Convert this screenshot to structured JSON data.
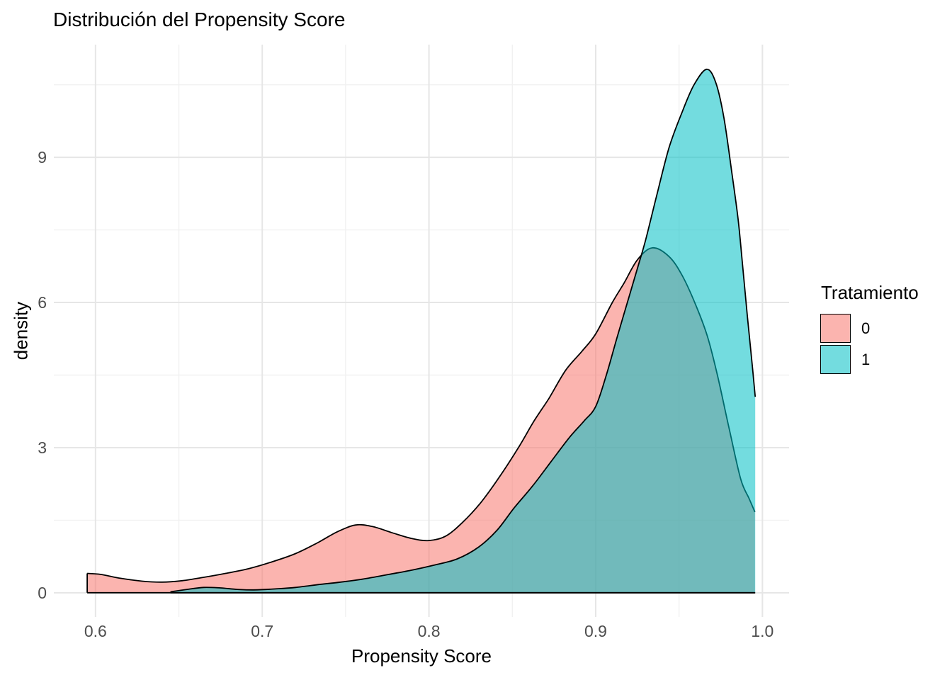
{
  "chart_data": {
    "type": "area",
    "subtype": "density",
    "title": "Distribución del Propensity Score",
    "xlabel": "Propensity Score",
    "ylabel": "density",
    "background": "#FFFFFF",
    "grid": {
      "major_color": "#E6E6E6",
      "minor_color": "#F1F1F1",
      "visible": true
    },
    "stroke_color": "#000000",
    "fill_alpha": 0.55,
    "x_domain": [
      0.575,
      1.016
    ],
    "y_domain": [
      -0.5,
      11.33
    ],
    "x_ticks": [
      {
        "v": 0.6,
        "label": "0.6"
      },
      {
        "v": 0.7,
        "label": "0.7"
      },
      {
        "v": 0.8,
        "label": "0.8"
      },
      {
        "v": 0.9,
        "label": "0.9"
      },
      {
        "v": 1.0,
        "label": "1.0"
      }
    ],
    "y_ticks": [
      {
        "v": 0,
        "label": "0"
      },
      {
        "v": 3,
        "label": "3"
      },
      {
        "v": 6,
        "label": "6"
      },
      {
        "v": 9,
        "label": "9"
      }
    ],
    "x_minor": [
      0.65,
      0.75,
      0.85,
      0.95
    ],
    "y_minor": [
      1.5,
      4.5,
      7.5,
      10.5
    ],
    "legend": {
      "title": "Tratamiento",
      "position": "right",
      "entries": [
        {
          "label": "0",
          "color": "#F8766D"
        },
        {
          "label": "1",
          "color": "#00BFC4"
        }
      ]
    },
    "series": [
      {
        "name": "0",
        "color": "#F8766D",
        "points": [
          [
            0.595,
            0.4
          ],
          [
            0.603,
            0.38
          ],
          [
            0.615,
            0.3
          ],
          [
            0.628,
            0.24
          ],
          [
            0.64,
            0.22
          ],
          [
            0.652,
            0.25
          ],
          [
            0.665,
            0.32
          ],
          [
            0.678,
            0.4
          ],
          [
            0.692,
            0.5
          ],
          [
            0.706,
            0.64
          ],
          [
            0.72,
            0.81
          ],
          [
            0.733,
            1.03
          ],
          [
            0.745,
            1.26
          ],
          [
            0.756,
            1.4
          ],
          [
            0.766,
            1.37
          ],
          [
            0.778,
            1.24
          ],
          [
            0.79,
            1.12
          ],
          [
            0.8,
            1.08
          ],
          [
            0.81,
            1.17
          ],
          [
            0.82,
            1.45
          ],
          [
            0.831,
            1.86
          ],
          [
            0.842,
            2.38
          ],
          [
            0.854,
            3.02
          ],
          [
            0.863,
            3.55
          ],
          [
            0.872,
            4.02
          ],
          [
            0.882,
            4.6
          ],
          [
            0.892,
            5.0
          ],
          [
            0.9,
            5.35
          ],
          [
            0.91,
            6.0
          ],
          [
            0.917,
            6.4
          ],
          [
            0.925,
            6.88
          ],
          [
            0.934,
            7.13
          ],
          [
            0.944,
            6.95
          ],
          [
            0.952,
            6.55
          ],
          [
            0.96,
            5.95
          ],
          [
            0.967,
            5.3
          ],
          [
            0.973,
            4.5
          ],
          [
            0.98,
            3.4
          ],
          [
            0.987,
            2.35
          ],
          [
            0.992,
            1.95
          ],
          [
            0.9955,
            1.67
          ]
        ]
      },
      {
        "name": "1",
        "color": "#00BFC4",
        "points": [
          [
            0.645,
            0.02
          ],
          [
            0.655,
            0.07
          ],
          [
            0.665,
            0.11
          ],
          [
            0.675,
            0.1
          ],
          [
            0.685,
            0.07
          ],
          [
            0.695,
            0.06
          ],
          [
            0.708,
            0.08
          ],
          [
            0.72,
            0.11
          ],
          [
            0.734,
            0.17
          ],
          [
            0.747,
            0.22
          ],
          [
            0.76,
            0.28
          ],
          [
            0.776,
            0.38
          ],
          [
            0.79,
            0.47
          ],
          [
            0.803,
            0.57
          ],
          [
            0.817,
            0.7
          ],
          [
            0.83,
            0.95
          ],
          [
            0.841,
            1.3
          ],
          [
            0.851,
            1.75
          ],
          [
            0.862,
            2.2
          ],
          [
            0.873,
            2.7
          ],
          [
            0.884,
            3.2
          ],
          [
            0.893,
            3.55
          ],
          [
            0.9,
            3.85
          ],
          [
            0.9064,
            4.5
          ],
          [
            0.913,
            5.3
          ],
          [
            0.919,
            6.0
          ],
          [
            0.925,
            6.7
          ],
          [
            0.93,
            7.3
          ],
          [
            0.9365,
            8.2
          ],
          [
            0.944,
            9.2
          ],
          [
            0.952,
            9.95
          ],
          [
            0.959,
            10.5
          ],
          [
            0.9665,
            10.82
          ],
          [
            0.972,
            10.55
          ],
          [
            0.977,
            9.8
          ],
          [
            0.982,
            8.6
          ],
          [
            0.9855,
            7.7
          ],
          [
            0.9883,
            6.7
          ],
          [
            0.991,
            5.7
          ],
          [
            0.9935,
            4.85
          ],
          [
            0.9957,
            4.05
          ]
        ]
      }
    ]
  }
}
